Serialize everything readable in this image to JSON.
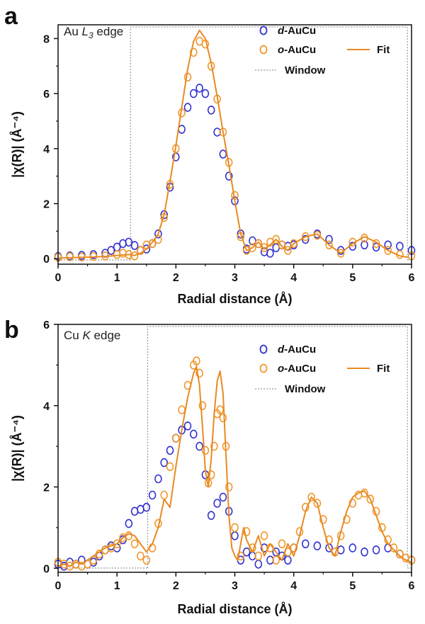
{
  "colors": {
    "d": "#3030d0",
    "o": "#f0962a",
    "fit": "#e88a22",
    "window": "#999999",
    "axis": "#111111"
  },
  "chart_data": [
    {
      "type": "scatter",
      "panel": "a",
      "edge_label": "Au L3 edge",
      "edge_base": "Au ",
      "edge_italic": "L",
      "edge_sub": "3",
      "edge_tail": " edge",
      "xlabel": "Radial distance (Å)",
      "ylabel": "|χ(R)| (Å⁻⁴)",
      "xlim": [
        0,
        6
      ],
      "ylim": [
        -0.2,
        8.5
      ],
      "xticks": [
        0,
        1,
        2,
        3,
        4,
        5,
        6
      ],
      "yticks": [
        0,
        2,
        4,
        6,
        8
      ],
      "legend": {
        "d_italic": "d",
        "d_rest": "-AuCu",
        "o_italic": "o",
        "o_rest": "-AuCu",
        "fit": "Fit",
        "window": "Window"
      },
      "window": [
        1.23,
        5.93
      ],
      "series": [
        {
          "name": "d-AuCu",
          "style": "circle",
          "x": [
            0,
            0.2,
            0.4,
            0.6,
            0.8,
            0.9,
            1.0,
            1.1,
            1.2,
            1.3,
            1.4,
            1.5,
            1.6,
            1.7,
            1.8,
            1.9,
            2.0,
            2.1,
            2.2,
            2.3,
            2.4,
            2.5,
            2.6,
            2.7,
            2.8,
            2.9,
            3.0,
            3.1,
            3.2,
            3.3,
            3.4,
            3.5,
            3.6,
            3.7,
            3.8,
            3.9,
            4.0,
            4.2,
            4.4,
            4.6,
            4.8,
            5.0,
            5.2,
            5.4,
            5.6,
            5.8,
            6.0
          ],
          "y": [
            0.08,
            0.1,
            0.12,
            0.15,
            0.2,
            0.3,
            0.42,
            0.55,
            0.6,
            0.48,
            0.3,
            0.35,
            0.55,
            0.9,
            1.6,
            2.6,
            3.7,
            4.7,
            5.5,
            6.0,
            6.2,
            6.0,
            5.4,
            4.6,
            3.8,
            3.0,
            2.1,
            0.9,
            0.35,
            0.65,
            0.55,
            0.25,
            0.2,
            0.4,
            0.5,
            0.45,
            0.5,
            0.7,
            0.9,
            0.7,
            0.3,
            0.45,
            0.5,
            0.42,
            0.5,
            0.45,
            0.3
          ]
        },
        {
          "name": "o-AuCu",
          "style": "circle",
          "x": [
            0,
            0.2,
            0.4,
            0.6,
            0.8,
            1.0,
            1.1,
            1.2,
            1.3,
            1.4,
            1.5,
            1.6,
            1.7,
            1.8,
            1.9,
            2.0,
            2.1,
            2.2,
            2.3,
            2.4,
            2.5,
            2.6,
            2.7,
            2.8,
            2.9,
            3.0,
            3.1,
            3.2,
            3.3,
            3.4,
            3.5,
            3.6,
            3.7,
            3.8,
            3.9,
            4.0,
            4.2,
            4.4,
            4.6,
            4.8,
            5.0,
            5.2,
            5.4,
            5.6,
            5.8,
            6.0
          ],
          "y": [
            0.05,
            0.07,
            0.06,
            0.08,
            0.1,
            0.15,
            0.2,
            0.15,
            0.1,
            0.3,
            0.5,
            0.55,
            0.7,
            1.5,
            2.7,
            4.0,
            5.3,
            6.6,
            7.5,
            7.9,
            7.8,
            7.0,
            5.8,
            4.6,
            3.5,
            2.3,
            0.8,
            0.3,
            0.4,
            0.55,
            0.4,
            0.6,
            0.7,
            0.5,
            0.3,
            0.55,
            0.8,
            0.85,
            0.5,
            0.2,
            0.6,
            0.75,
            0.55,
            0.3,
            0.15,
            0.1
          ]
        },
        {
          "name": "Fit",
          "style": "line",
          "x": [
            0,
            0.2,
            0.4,
            0.6,
            0.8,
            1.0,
            1.2,
            1.3,
            1.4,
            1.5,
            1.6,
            1.7,
            1.8,
            1.9,
            2.0,
            2.1,
            2.2,
            2.3,
            2.4,
            2.5,
            2.6,
            2.7,
            2.8,
            2.9,
            3.0,
            3.1,
            3.2,
            3.3,
            3.4,
            3.5,
            3.6,
            3.7,
            3.8,
            3.9,
            4.0,
            4.2,
            4.4,
            4.6,
            4.8,
            5.0,
            5.2,
            5.4,
            5.6,
            5.8,
            5.95
          ],
          "y": [
            0.02,
            0.04,
            0.05,
            0.06,
            0.08,
            0.12,
            0.15,
            0.12,
            0.2,
            0.35,
            0.6,
            0.9,
            1.6,
            2.8,
            4.1,
            5.5,
            6.9,
            7.9,
            8.3,
            8.0,
            7.1,
            5.9,
            4.6,
            3.4,
            2.1,
            0.9,
            0.3,
            0.4,
            0.6,
            0.35,
            0.5,
            0.7,
            0.45,
            0.3,
            0.55,
            0.8,
            0.9,
            0.5,
            0.2,
            0.55,
            0.8,
            0.6,
            0.3,
            0.1,
            0.05
          ]
        }
      ]
    },
    {
      "type": "scatter",
      "panel": "b",
      "edge_label": "Cu K edge",
      "edge_base": "Cu ",
      "edge_italic": "K",
      "edge_sub": "",
      "edge_tail": " edge",
      "xlabel": "Radial distance (Å)",
      "ylabel": "|χ(R)| (Å⁻⁴)",
      "xlim": [
        0,
        6
      ],
      "ylim": [
        -0.1,
        6
      ],
      "xticks": [
        0,
        1,
        2,
        3,
        4,
        5,
        6
      ],
      "yticks": [
        0,
        2,
        4,
        6
      ],
      "legend": {
        "d_italic": "d",
        "d_rest": "-AuCu",
        "o_italic": "o",
        "o_rest": "-AuCu",
        "fit": "Fit",
        "window": "Window"
      },
      "window": [
        1.52,
        5.93
      ],
      "series": [
        {
          "name": "d-AuCu",
          "style": "circle",
          "x": [
            0,
            0.1,
            0.2,
            0.3,
            0.4,
            0.5,
            0.6,
            0.7,
            0.8,
            0.9,
            1.0,
            1.1,
            1.2,
            1.3,
            1.4,
            1.5,
            1.6,
            1.7,
            1.8,
            1.9,
            2.0,
            2.1,
            2.2,
            2.3,
            2.4,
            2.5,
            2.6,
            2.7,
            2.8,
            2.9,
            3.0,
            3.1,
            3.2,
            3.3,
            3.4,
            3.5,
            3.6,
            3.7,
            3.8,
            3.9,
            4.0,
            4.2,
            4.4,
            4.6,
            4.8,
            5.0,
            5.2,
            5.4,
            5.6,
            5.8,
            6.0
          ],
          "y": [
            0.1,
            0.05,
            0.15,
            0.1,
            0.2,
            0.1,
            0.15,
            0.3,
            0.45,
            0.55,
            0.5,
            0.7,
            1.1,
            1.4,
            1.45,
            1.5,
            1.8,
            2.2,
            2.6,
            2.9,
            3.2,
            3.4,
            3.5,
            3.3,
            3.0,
            2.3,
            1.3,
            1.6,
            1.75,
            1.4,
            0.8,
            0.2,
            0.4,
            0.3,
            0.1,
            0.5,
            0.2,
            0.4,
            0.3,
            0.2,
            0.5,
            0.6,
            0.55,
            0.5,
            0.45,
            0.5,
            0.4,
            0.45,
            0.5,
            0.35,
            0.2
          ]
        },
        {
          "name": "o-AuCu",
          "style": "circle",
          "x": [
            0,
            0.1,
            0.2,
            0.3,
            0.4,
            0.5,
            0.6,
            0.7,
            0.8,
            0.9,
            1.0,
            1.1,
            1.2,
            1.3,
            1.4,
            1.5,
            1.6,
            1.7,
            1.8,
            1.9,
            2.0,
            2.1,
            2.2,
            2.3,
            2.35,
            2.4,
            2.45,
            2.5,
            2.55,
            2.6,
            2.65,
            2.7,
            2.75,
            2.8,
            2.85,
            2.9,
            3.0,
            3.1,
            3.2,
            3.3,
            3.4,
            3.5,
            3.6,
            3.7,
            3.8,
            3.9,
            4.0,
            4.1,
            4.2,
            4.3,
            4.4,
            4.5,
            4.6,
            4.7,
            4.8,
            4.9,
            5.0,
            5.1,
            5.2,
            5.3,
            5.4,
            5.5,
            5.6,
            5.7,
            5.8,
            5.9,
            6.0
          ],
          "y": [
            0.15,
            0.1,
            0.05,
            0.1,
            0.05,
            0.1,
            0.2,
            0.35,
            0.45,
            0.5,
            0.6,
            0.75,
            0.8,
            0.6,
            0.3,
            0.2,
            0.5,
            1.1,
            1.8,
            2.5,
            3.2,
            3.9,
            4.5,
            5.0,
            5.1,
            4.8,
            4.0,
            2.9,
            2.1,
            2.3,
            3.0,
            3.8,
            3.9,
            3.7,
            3.0,
            2.0,
            1.0,
            0.3,
            0.9,
            0.5,
            0.3,
            0.8,
            0.5,
            0.2,
            0.6,
            0.4,
            0.5,
            0.9,
            1.5,
            1.75,
            1.6,
            1.2,
            0.7,
            0.4,
            0.8,
            1.2,
            1.6,
            1.8,
            1.85,
            1.7,
            1.4,
            1.0,
            0.7,
            0.5,
            0.35,
            0.25,
            0.2
          ]
        },
        {
          "name": "Fit",
          "style": "line",
          "x": [
            0,
            0.1,
            0.2,
            0.3,
            0.4,
            0.5,
            0.6,
            0.7,
            0.8,
            0.9,
            1.0,
            1.1,
            1.2,
            1.3,
            1.4,
            1.5,
            1.6,
            1.7,
            1.8,
            1.9,
            2.0,
            2.1,
            2.2,
            2.3,
            2.35,
            2.4,
            2.45,
            2.5,
            2.55,
            2.6,
            2.65,
            2.7,
            2.75,
            2.8,
            2.85,
            2.9,
            2.95,
            3.0,
            3.05,
            3.1,
            3.15,
            3.2,
            3.3,
            3.4,
            3.5,
            3.6,
            3.7,
            3.8,
            3.9,
            4.0,
            4.1,
            4.2,
            4.3,
            4.4,
            4.5,
            4.6,
            4.7,
            4.8,
            4.9,
            5.0,
            5.1,
            5.2,
            5.3,
            5.4,
            5.5,
            5.6,
            5.7,
            5.8,
            5.9,
            6.0
          ],
          "y": [
            0.05,
            0.1,
            0.05,
            0.15,
            0.1,
            0.2,
            0.3,
            0.4,
            0.5,
            0.55,
            0.6,
            0.75,
            0.85,
            0.8,
            0.6,
            0.4,
            0.6,
            1.0,
            1.7,
            1.5,
            2.5,
            3.4,
            4.2,
            4.8,
            4.95,
            4.5,
            3.5,
            2.4,
            2.0,
            2.7,
            3.8,
            4.6,
            4.85,
            4.3,
            2.8,
            1.3,
            0.5,
            0.3,
            0.2,
            0.6,
            1.0,
            0.7,
            0.4,
            0.8,
            0.3,
            0.6,
            0.4,
            0.2,
            0.6,
            0.3,
            0.8,
            1.4,
            1.75,
            1.6,
            1.0,
            0.5,
            0.3,
            0.9,
            1.4,
            1.75,
            1.85,
            1.9,
            1.7,
            1.3,
            0.9,
            0.6,
            0.45,
            0.3,
            0.2,
            0.15
          ]
        }
      ]
    }
  ]
}
